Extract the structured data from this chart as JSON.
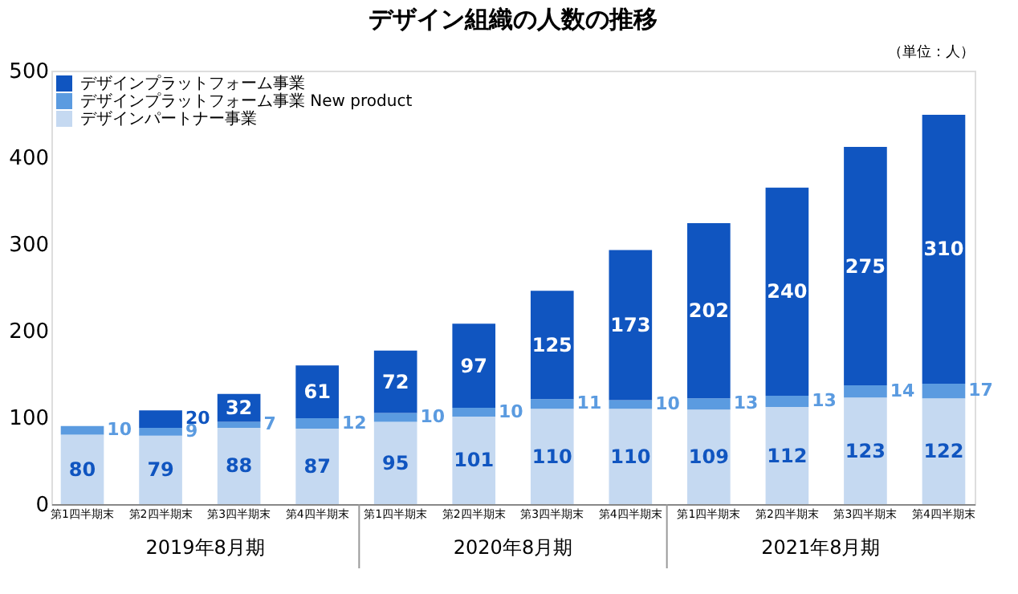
{
  "chart_data": {
    "type": "bar",
    "stacked": true,
    "title": "デザイン組織の人数の推移",
    "categories": [
      "第1四半期末",
      "第2四半期末",
      "第3四半期末",
      "第4四半期末",
      "第1四半期末",
      "第2四半期末",
      "第3四半期末",
      "第4四半期末",
      "第1四半期末",
      "第2四半期末",
      "第3四半期末",
      "第4四半期末"
    ],
    "series": [
      {
        "name": "デザインパートナー事業",
        "color": "#c5d9f1",
        "values": [
          80,
          79,
          88,
          87,
          95,
          101,
          110,
          110,
          109,
          112,
          123,
          122
        ]
      },
      {
        "name": "デザインプラットフォーム事業 New product",
        "color": "#5b9be0",
        "values": [
          10,
          9,
          7,
          12,
          10,
          10,
          11,
          10,
          13,
          13,
          14,
          17
        ]
      },
      {
        "name": "デザインプラットフォーム事業",
        "color": "#1055c0",
        "values": [
          null,
          20,
          32,
          61,
          72,
          97,
          125,
          173,
          202,
          240,
          275,
          310
        ]
      }
    ],
    "ylim": [
      0,
      500
    ],
    "yticks": [
      0,
      100,
      200,
      300,
      400,
      500
    ],
    "grid": false,
    "legend": "top left",
    "data_labels": true,
    "annotations": [
      "2019年8月期",
      "2020年8月期",
      "2021年8月期",
      "（単位：人）"
    ]
  }
}
